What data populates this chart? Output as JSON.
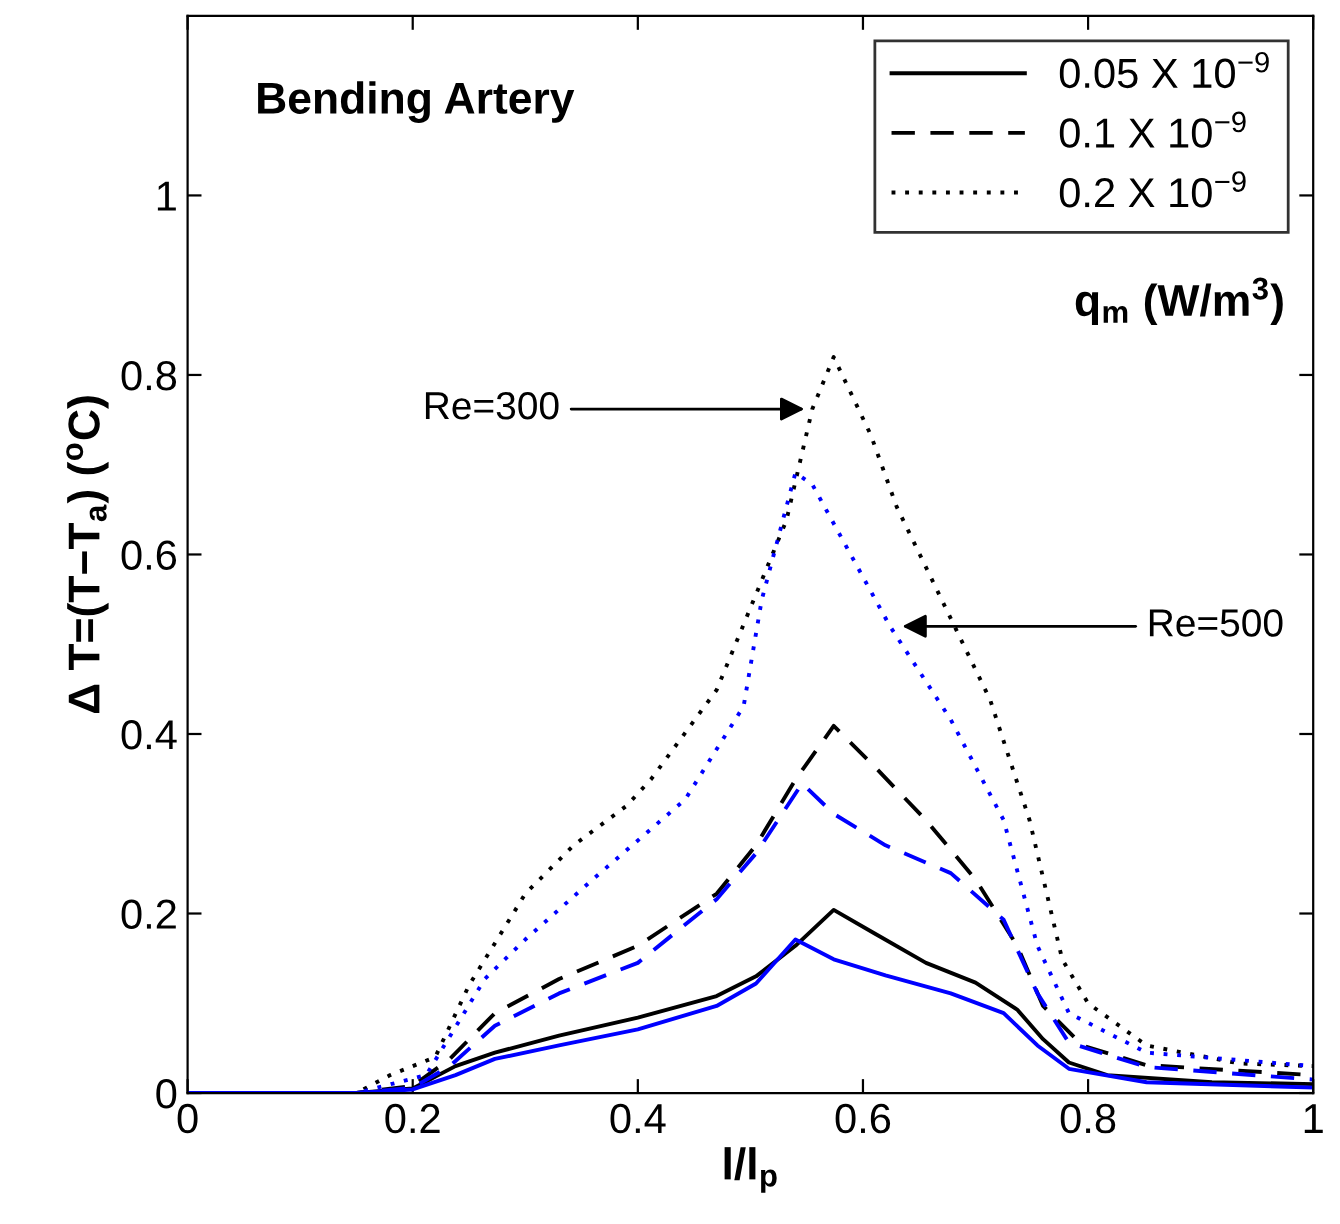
{
  "chart_data": {
    "type": "line",
    "title": "Bending Artery",
    "xlabel": "l/l$_{p}$",
    "ylabel": "Δ T=(T−T$_{a}$) ($^{o}$C)",
    "legend_title": "q$_{m}$ (W/m$^{3}$)",
    "xlim": [
      0,
      1
    ],
    "ylim": [
      0,
      1.2
    ],
    "xticks": [
      0,
      0.2,
      0.4,
      0.6,
      0.8,
      1
    ],
    "yticks": [
      0,
      0.2,
      0.4,
      0.6,
      0.8,
      1
    ],
    "grid": false,
    "legend": "top right",
    "marker": "none",
    "series": [
      {
        "name": "0.05 X 10$^{−9}$",
        "color": "#000000",
        "line_style": "solid",
        "x": [
          0,
          0.15,
          0.2,
          0.238,
          0.273,
          0.33,
          0.4,
          0.47,
          0.505,
          0.54,
          0.574,
          0.61,
          0.656,
          0.7,
          0.737,
          0.76,
          0.783,
          0.817,
          0.91,
          1
        ],
        "values": [
          0,
          0,
          0.005,
          0.03,
          0.045,
          0.064,
          0.084,
          0.108,
          0.13,
          0.164,
          0.204,
          0.178,
          0.145,
          0.123,
          0.093,
          0.06,
          0.034,
          0.02,
          0.012,
          0.01
        ]
      },
      {
        "name": "0.1 X 10$^{−9}$",
        "color": "#000000",
        "line_style": "dashed",
        "x": [
          0,
          0.15,
          0.2,
          0.233,
          0.273,
          0.33,
          0.4,
          0.47,
          0.505,
          0.54,
          0.574,
          0.61,
          0.656,
          0.7,
          0.737,
          0.76,
          0.795,
          0.852,
          1
        ],
        "values": [
          0,
          0,
          0.008,
          0.038,
          0.089,
          0.127,
          0.164,
          0.222,
          0.276,
          0.349,
          0.409,
          0.364,
          0.304,
          0.238,
          0.164,
          0.097,
          0.053,
          0.031,
          0.02
        ]
      },
      {
        "name": "0.2 X 10$^{−9}$",
        "color": "#000000",
        "line_style": "dotted",
        "x": [
          0,
          0.15,
          0.18,
          0.22,
          0.25,
          0.3,
          0.343,
          0.39,
          0.412,
          0.47,
          0.532,
          0.555,
          0.574,
          0.607,
          0.63,
          0.713,
          0.748,
          0.777,
          0.8,
          0.852,
          0.934,
          1
        ],
        "values": [
          0,
          0,
          0.02,
          0.04,
          0.12,
          0.222,
          0.276,
          0.32,
          0.35,
          0.449,
          0.638,
          0.762,
          0.82,
          0.733,
          0.653,
          0.438,
          0.304,
          0.149,
          0.1,
          0.053,
          0.033,
          0.03
        ]
      },
      {
        "color": "#0000ff",
        "line_style": "solid",
        "x": [
          0,
          0.15,
          0.2,
          0.238,
          0.273,
          0.33,
          0.4,
          0.47,
          0.505,
          0.54,
          0.574,
          0.62,
          0.678,
          0.725,
          0.755,
          0.783,
          0.852,
          1
        ],
        "values": [
          0,
          0,
          0.004,
          0.02,
          0.038,
          0.053,
          0.071,
          0.097,
          0.122,
          0.171,
          0.149,
          0.131,
          0.111,
          0.089,
          0.053,
          0.027,
          0.012,
          0.006
        ]
      },
      {
        "color": "#0000ff",
        "line_style": "dashed",
        "x": [
          0,
          0.15,
          0.2,
          0.233,
          0.273,
          0.33,
          0.4,
          0.47,
          0.505,
          0.546,
          0.574,
          0.62,
          0.678,
          0.725,
          0.755,
          0.783,
          0.852,
          1
        ],
        "values": [
          0,
          0,
          0.006,
          0.03,
          0.075,
          0.111,
          0.145,
          0.216,
          0.267,
          0.345,
          0.311,
          0.276,
          0.245,
          0.193,
          0.111,
          0.056,
          0.029,
          0.015
        ]
      },
      {
        "color": "#0000ff",
        "line_style": "dotted",
        "x": [
          0,
          0.15,
          0.212,
          0.264,
          0.3,
          0.36,
          0.442,
          0.494,
          0.51,
          0.54,
          0.555,
          0.624,
          0.678,
          0.725,
          0.755,
          0.783,
          0.852,
          1
        ],
        "values": [
          0,
          0,
          0.02,
          0.127,
          0.171,
          0.238,
          0.327,
          0.431,
          0.549,
          0.691,
          0.678,
          0.52,
          0.416,
          0.304,
          0.164,
          0.089,
          0.045,
          0.03
        ]
      }
    ],
    "annotations": [
      {
        "text": "Re=300",
        "x": 0.553,
        "y": 0.762
      },
      {
        "text": "Re=500",
        "x": 0.63,
        "y": 0.52
      }
    ]
  }
}
